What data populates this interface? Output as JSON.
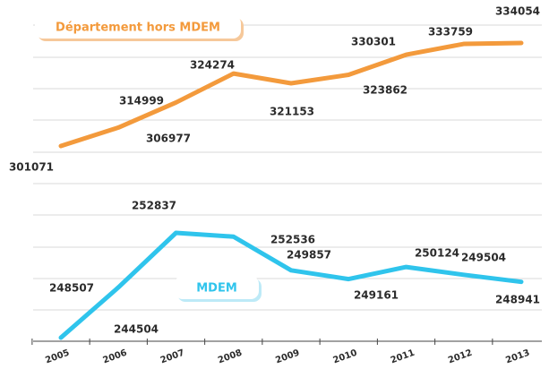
{
  "chart_data": {
    "type": "line",
    "categories": [
      "2005",
      "2006",
      "2007",
      "2008",
      "2009",
      "2010",
      "2011",
      "2012",
      "2013"
    ],
    "series": [
      {
        "name": "Département hors MDEM",
        "color": "#f39a3c",
        "values": [
          301071,
          306977,
          314999,
          324274,
          321153,
          323862,
          330301,
          333759,
          334054
        ]
      },
      {
        "name": "MDEM",
        "color": "#2fc4ec",
        "values": [
          244504,
          248507,
          252837,
          252536,
          249857,
          249161,
          250124,
          249504,
          248941
        ]
      }
    ]
  }
}
